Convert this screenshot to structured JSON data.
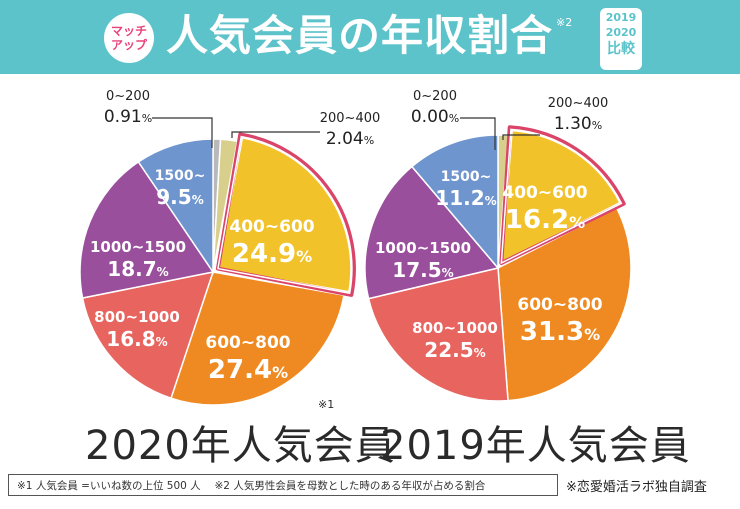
{
  "header": {
    "badge_line1": "マッチ",
    "badge_line2": "アップ",
    "title": "人気会員の年収割合",
    "title_note": "※2",
    "year_a": "2019",
    "year_b": "2020",
    "compare": "比較"
  },
  "colors": {
    "header_bg": "#5cc3cb",
    "highlight_outline": "#d94468",
    "s0_200": "#b9b9b9",
    "s200_400": "#d9cf8c",
    "s400_600": "#f2c22a",
    "s600_800": "#ef8a22",
    "s800_1000": "#e8645f",
    "s1000_1500": "#9a4f9c",
    "s1500": "#6f95cf"
  },
  "chart_data": [
    {
      "type": "pie",
      "title": "2020年人気会員",
      "title_note": "※1",
      "categories": [
        "0~200",
        "200~400",
        "400~600",
        "600~800",
        "800~1000",
        "1000~1500",
        "1500~"
      ],
      "values": [
        0.91,
        2.04,
        24.9,
        27.4,
        16.8,
        18.7,
        9.5
      ],
      "value_labels": [
        "0.91",
        "2.04",
        "24.9",
        "27.4",
        "16.8",
        "18.7",
        "9.5"
      ],
      "unit": "%",
      "highlight": "400~600"
    },
    {
      "type": "pie",
      "title": "2019年人気会員",
      "title_note": "",
      "categories": [
        "0~200",
        "200~400",
        "400~600",
        "600~800",
        "800~1000",
        "1000~1500",
        "1500~"
      ],
      "values": [
        0.0,
        1.3,
        16.2,
        31.3,
        22.5,
        17.5,
        11.2
      ],
      "value_labels": [
        "0.00",
        "1.30",
        "16.2",
        "31.3",
        "22.5",
        "17.5",
        "11.2"
      ],
      "unit": "%",
      "highlight": "400~600"
    }
  ],
  "footer": {
    "note": "※1 人気会員 =いいね数の上位 500 人　 ※2 人気男性会員を母数とした時のある年収が占める割合",
    "source": "※恋愛婚活ラボ独自調査"
  }
}
